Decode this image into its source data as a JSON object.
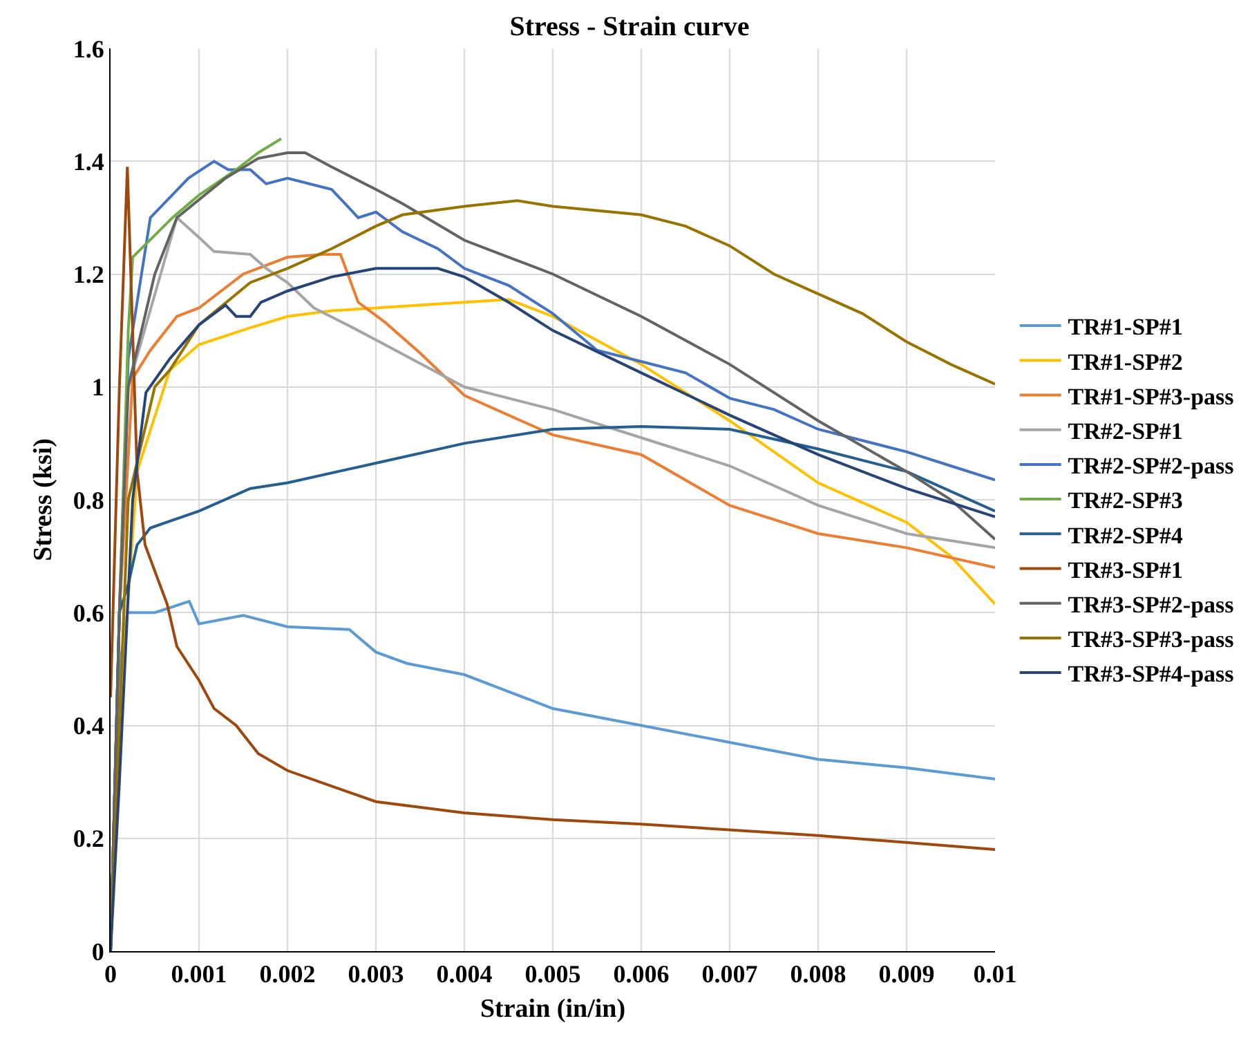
{
  "chart_data": {
    "type": "line",
    "title": "Stress - Strain curve",
    "xlabel": "Strain (in/in)",
    "ylabel": "Stress (ksi)",
    "xlim": [
      0,
      0.01
    ],
    "xticks": [
      0,
      0.001,
      0.002,
      0.003,
      0.004,
      0.005,
      0.006,
      0.007,
      0.008,
      0.009,
      0.01
    ],
    "ylim": [
      0,
      1.6
    ],
    "yticks": [
      0,
      0.2,
      0.4,
      0.6,
      0.8,
      1,
      1.2,
      1.4,
      1.6
    ],
    "grid": true,
    "legend": "right",
    "marker": "none",
    "line_style": "solid",
    "series": [
      {
        "name": "TR#1-SP#1",
        "color": "#5b9bd5",
        "x": [
          0,
          5e-05,
          0.0001,
          0.00019,
          0.0005,
          0.00089,
          0.001,
          0.0015,
          0.002,
          0.0027,
          0.003,
          0.00335,
          0.004,
          0.0045,
          0.005,
          0.006,
          0.007,
          0.008,
          0.009,
          0.01
        ],
        "values": [
          0,
          0.3,
          0.5,
          0.6,
          0.6,
          0.62,
          0.58,
          0.595,
          0.575,
          0.57,
          0.53,
          0.51,
          0.49,
          0.46,
          0.43,
          0.4,
          0.37,
          0.34,
          0.325,
          0.305
        ]
      },
      {
        "name": "TR#1-SP#2",
        "color": "#ffc000",
        "x": [
          0,
          0.0001,
          0.0003,
          0.00067,
          0.001,
          0.00158,
          0.002,
          0.0025,
          0.003,
          0.004,
          0.0045,
          0.005,
          0.006,
          0.007,
          0.008,
          0.009,
          0.0095,
          0.01
        ],
        "values": [
          0,
          0.4,
          0.85,
          1.03,
          1.075,
          1.105,
          1.125,
          1.135,
          1.14,
          1.15,
          1.155,
          1.125,
          1.04,
          0.94,
          0.83,
          0.76,
          0.7,
          0.615
        ]
      },
      {
        "name": "TR#1-SP#3-pass",
        "color": "#ed7d31",
        "x": [
          0,
          0.0001,
          0.00025,
          0.00045,
          0.00075,
          0.001,
          0.0015,
          0.002,
          0.0024,
          0.0026,
          0.0028,
          0.0031,
          0.0035,
          0.004,
          0.005,
          0.006,
          0.007,
          0.008,
          0.009,
          0.01
        ],
        "values": [
          0,
          0.6,
          1.015,
          1.065,
          1.125,
          1.14,
          1.2,
          1.23,
          1.235,
          1.235,
          1.15,
          1.115,
          1.06,
          0.985,
          0.915,
          0.88,
          0.79,
          0.74,
          0.715,
          0.68
        ]
      },
      {
        "name": "TR#2-SP#1",
        "color": "#a5a5a5",
        "x": [
          0,
          0.0001,
          0.0002,
          0.00075,
          0.001,
          0.00117,
          0.00158,
          0.00176,
          0.002,
          0.0023,
          0.0028,
          0.0034,
          0.004,
          0.005,
          0.006,
          0.007,
          0.008,
          0.009,
          0.01
        ],
        "values": [
          0,
          0.6,
          1,
          1.3,
          1.265,
          1.24,
          1.235,
          1.21,
          1.185,
          1.14,
          1.1,
          1.05,
          1,
          0.96,
          0.91,
          0.86,
          0.79,
          0.74,
          0.715
        ]
      },
      {
        "name": "TR#2-SP#2-pass",
        "color": "#4472c4",
        "x": [
          0,
          0.0001,
          0.0002,
          0.00045,
          0.00088,
          0.00117,
          0.00133,
          0.00158,
          0.00176,
          0.002,
          0.0025,
          0.0028,
          0.003,
          0.0033,
          0.0037,
          0.004,
          0.0045,
          0.005,
          0.0055,
          0.006,
          0.0065,
          0.007,
          0.0075,
          0.008,
          0.0085,
          0.009,
          0.0095,
          0.01
        ],
        "values": [
          0,
          0.6,
          1.05,
          1.3,
          1.37,
          1.4,
          1.385,
          1.385,
          1.36,
          1.37,
          1.35,
          1.3,
          1.31,
          1.275,
          1.245,
          1.21,
          1.18,
          1.13,
          1.065,
          1.045,
          1.025,
          0.98,
          0.96,
          0.925,
          0.905,
          0.885,
          0.86,
          0.835
        ]
      },
      {
        "name": "TR#2-SP#3",
        "color": "#70ad47",
        "x": [
          0,
          0.0001,
          0.0002,
          0.00025,
          0.0007,
          0.001,
          0.00142,
          0.00167,
          0.00193
        ],
        "values": [
          0,
          0.6,
          1.1,
          1.23,
          1.3,
          1.34,
          1.385,
          1.415,
          1.44
        ]
      },
      {
        "name": "TR#2-SP#4",
        "color": "#255e91",
        "x": [
          0,
          0.0001,
          0.0002,
          0.0003,
          0.00045,
          0.001,
          0.00158,
          0.002,
          0.003,
          0.004,
          0.005,
          0.006,
          0.007,
          0.008,
          0.009,
          0.01
        ],
        "values": [
          0,
          0.6,
          0.65,
          0.72,
          0.75,
          0.78,
          0.82,
          0.83,
          0.865,
          0.9,
          0.925,
          0.93,
          0.925,
          0.89,
          0.85,
          0.78
        ]
      },
      {
        "name": "TR#3-SP#1",
        "color": "#9e480e",
        "x": [
          0,
          0.0001,
          0.00019,
          0.0003,
          0.00039,
          0.00064,
          0.00075,
          0.001,
          0.00117,
          0.00142,
          0.00167,
          0.002,
          0.003,
          0.004,
          0.005,
          0.006,
          0.008,
          0.01
        ],
        "values": [
          0.45,
          1.0,
          1.39,
          0.85,
          0.72,
          0.615,
          0.54,
          0.48,
          0.43,
          0.4,
          0.35,
          0.32,
          0.265,
          0.245,
          0.233,
          0.225,
          0.205,
          0.18
        ]
      },
      {
        "name": "TR#3-SP#2-pass",
        "color": "#636363",
        "x": [
          0,
          0.0001,
          0.0002,
          0.0005,
          0.00075,
          0.0013,
          0.00167,
          0.002,
          0.0022,
          0.0025,
          0.003,
          0.0033,
          0.004,
          0.0045,
          0.005,
          0.006,
          0.007,
          0.008,
          0.009,
          0.0095,
          0.01
        ],
        "values": [
          0,
          0.6,
          1,
          1.2,
          1.3,
          1.37,
          1.405,
          1.415,
          1.415,
          1.39,
          1.35,
          1.325,
          1.26,
          1.23,
          1.2,
          1.125,
          1.04,
          0.94,
          0.85,
          0.8,
          0.73
        ]
      },
      {
        "name": "TR#3-SP#3-pass",
        "color": "#997300",
        "x": [
          0,
          0.0001,
          0.0002,
          0.0005,
          0.00067,
          0.001,
          0.00158,
          0.002,
          0.0025,
          0.003,
          0.0033,
          0.004,
          0.0046,
          0.005,
          0.006,
          0.0065,
          0.007,
          0.0075,
          0.008,
          0.0085,
          0.009,
          0.0095,
          0.01
        ],
        "values": [
          0,
          0.4,
          0.8,
          1,
          1.03,
          1.11,
          1.185,
          1.21,
          1.245,
          1.285,
          1.305,
          1.32,
          1.33,
          1.32,
          1.305,
          1.285,
          1.25,
          1.2,
          1.165,
          1.13,
          1.08,
          1.04,
          1.005
        ]
      },
      {
        "name": "TR#3-SP#4-pass",
        "color": "#264478",
        "x": [
          0,
          0.0001,
          0.00025,
          0.0004,
          0.00067,
          0.001,
          0.0013,
          0.00142,
          0.00158,
          0.0017,
          0.002,
          0.0025,
          0.003,
          0.0037,
          0.004,
          0.0045,
          0.005,
          0.006,
          0.007,
          0.008,
          0.009,
          0.01
        ],
        "values": [
          0,
          0.3,
          0.8,
          0.99,
          1.05,
          1.11,
          1.145,
          1.125,
          1.125,
          1.15,
          1.17,
          1.195,
          1.21,
          1.21,
          1.195,
          1.15,
          1.1,
          1.025,
          0.95,
          0.88,
          0.82,
          0.77
        ]
      }
    ]
  }
}
